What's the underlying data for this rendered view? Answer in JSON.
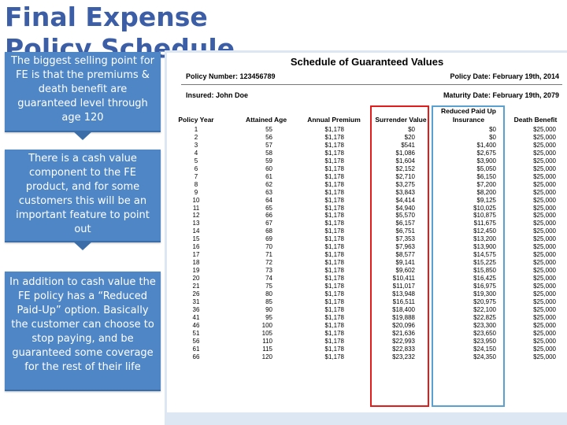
{
  "slide": {
    "title": "Final Expense Policy Schedule"
  },
  "callouts": [
    "The biggest selling point for FE is that the premiums & death benefit are guaranteed level through age 120",
    "There is a cash value component to the FE product, and for some customers this will be an important feature to point out",
    "In addition to cash value the FE policy has a “Reduced Paid-Up” option.  Basically the customer can choose to stop paying, and be guaranteed some coverage for the rest of their life"
  ],
  "schedule": {
    "title": "Schedule of Guaranteed Values",
    "policy_number": "Policy Number: 123456789",
    "policy_date": "Policy Date: February 19th, 2014",
    "insured": "Insured: John Doe",
    "maturity_date": "Maturity Date: February 19th, 2079",
    "headers": {
      "policy_year": "Policy Year",
      "attained_age": "Attained Age",
      "annual_premium": "Annual Premium",
      "surrender_value": "Surrender Value",
      "reduced_paid_up_line1": "Reduced Paid Up",
      "reduced_paid_up_line2": "Insurance",
      "death_benefit": "Death Benefit"
    },
    "policy_year": "1\n2\n3\n4\n5\n6\n7\n8\n9\n10\n11\n12\n13\n14\n15\n16\n17\n18\n19\n20\n21\n26\n31\n36\n41\n46\n51\n56\n61\n66",
    "attained_age": "55\n56\n57\n58\n59\n60\n61\n62\n63\n64\n65\n66\n67\n68\n69\n70\n71\n72\n73\n74\n75\n80\n85\n90\n95\n100\n105\n110\n115\n120",
    "annual_premium": "$1,178\n$1,178\n$1,178\n$1,178\n$1,178\n$1,178\n$1,178\n$1,178\n$1,178\n$1,178\n$1,178\n$1,178\n$1,178\n$1,178\n$1,178\n$1,178\n$1,178\n$1,178\n$1,178\n$1,178\n$1,178\n$1,178\n$1,178\n$1,178\n$1,178\n$1,178\n$1,178\n$1,178\n$1,178\n$1,178",
    "surrender_value": "$0\n$20\n$541\n$1,086\n$1,604\n$2,152\n$2,710\n$3,275\n$3,843\n$4,414\n$4,940\n$5,570\n$6,157\n$6,751\n$7,353\n$7,963\n$8,577\n$9,141\n$9,602\n$10,411\n$11,017\n$13,948\n$16,511\n$18,400\n$19,888\n$20,096\n$21,636\n$22,993\n$22,833\n$23,232",
    "reduced_paid_up": "$0\n$0\n$1,400\n$2,675\n$3,900\n$5,050\n$6,150\n$7,200\n$8,200\n$9,125\n$10,025\n$10,875\n$11,675\n$12,450\n$13,200\n$13,900\n$14,575\n$15,225\n$15,850\n$16,425\n$16,975\n$19,300\n$20,975\n$22,100\n$22,825\n$23,300\n$23,650\n$23,950\n$24,150\n$24,350",
    "death_benefit": "$25,000\n$25,000\n$25,000\n$25,000\n$25,000\n$25,000\n$25,000\n$25,000\n$25,000\n$25,000\n$25,000\n$25,000\n$25,000\n$25,000\n$25,000\n$25,000\n$25,000\n$25,000\n$25,000\n$25,000\n$25,000\n$25,000\n$25,000\n$25,000\n$25,000\n$25,000\n$25,000\n$25,000\n$25,000\n$25,000"
  }
}
